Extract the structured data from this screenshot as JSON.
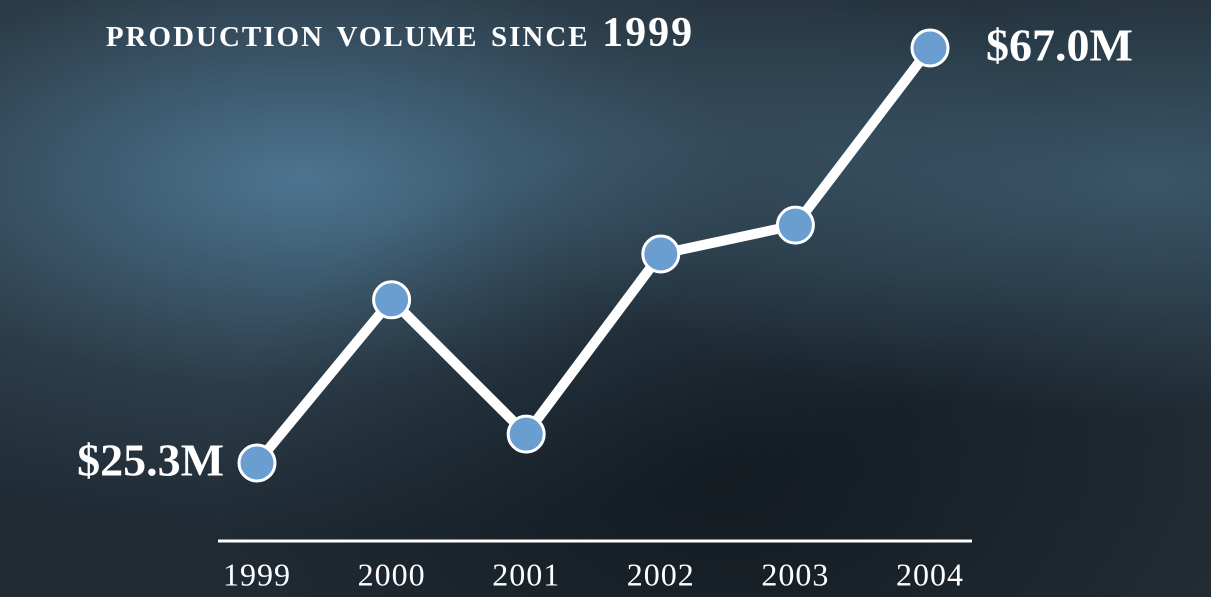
{
  "chart_data": {
    "type": "line",
    "title": "PRODUCTION VOLUME SINCE 1999",
    "categories": [
      "1999",
      "2000",
      "2001",
      "2002",
      "2003",
      "2004"
    ],
    "values": [
      25.3,
      41.7,
      28.2,
      46.3,
      49.2,
      67.0
    ],
    "value_labels": [
      "$25.3M",
      null,
      null,
      null,
      null,
      "$67.0M"
    ],
    "color": "#6a9dd0",
    "line_color": "#ffffff"
  }
}
